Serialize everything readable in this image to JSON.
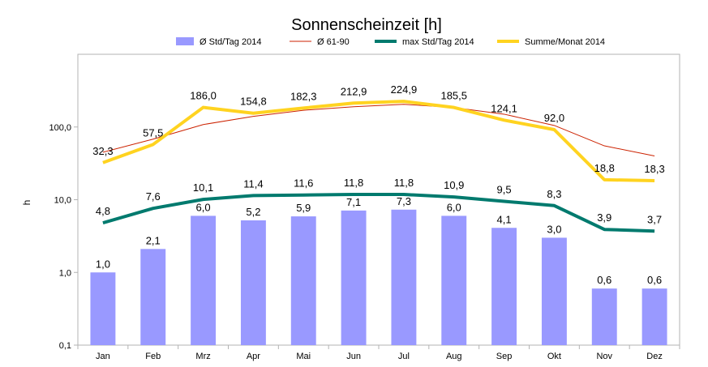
{
  "chart_data": {
    "type": "bar",
    "title": "Sonnenscheinzeit [h]",
    "xlabel": "",
    "ylabel": "h",
    "scale": "log",
    "ylim": [
      0.1,
      1000
    ],
    "ytick_values": [
      0.1,
      1,
      10,
      100
    ],
    "ytick_labels": [
      "0,1",
      "1,0",
      "10,0",
      "100,0"
    ],
    "grid": false,
    "legend_position": "top",
    "categories": [
      "Jan",
      "Feb",
      "Mrz",
      "Apr",
      "Mai",
      "Jun",
      "Jul",
      "Aug",
      "Sep",
      "Okt",
      "Nov",
      "Dez"
    ],
    "series": [
      {
        "name": "Ø  Std/Tag 2014",
        "kind": "bar",
        "color": "#9999ff",
        "values": [
          1.0,
          2.1,
          6.0,
          5.2,
          5.9,
          7.1,
          7.3,
          6.0,
          4.1,
          3.0,
          0.6,
          0.6
        ],
        "labels": [
          "1,0",
          "2,1",
          "6,0",
          "5,2",
          "5,9",
          "7,1",
          "7,3",
          "6,0",
          "4,1",
          "3,0",
          "0,6",
          "0,6"
        ]
      },
      {
        "name": "Ø 61-90",
        "kind": "line",
        "color": "#cc2200",
        "values": [
          45,
          68,
          108,
          140,
          170,
          190,
          205,
          185,
          150,
          105,
          55,
          40
        ],
        "labels": []
      },
      {
        "name": "max Std/Tag 2014",
        "kind": "line",
        "color": "#007a6e",
        "values": [
          4.8,
          7.6,
          10.1,
          11.4,
          11.6,
          11.8,
          11.8,
          10.9,
          9.5,
          8.3,
          3.9,
          3.7
        ],
        "labels": [
          "4,8",
          "7,6",
          "10,1",
          "11,4",
          "11,6",
          "11,8",
          "11,8",
          "10,9",
          "9,5",
          "8,3",
          "3,9",
          "3,7"
        ]
      },
      {
        "name": "Summe/Monat 2014",
        "kind": "line",
        "color": "#ffd320",
        "values": [
          32.3,
          57.5,
          186.0,
          154.8,
          182.3,
          212.9,
          224.9,
          185.5,
          124.1,
          92.0,
          18.8,
          18.3
        ],
        "labels": [
          "32,3",
          "57,5",
          "186,0",
          "154,8",
          "182,3",
          "212,9",
          "224,9",
          "185,5",
          "124,1",
          "92,0",
          "18,8",
          "18,3"
        ]
      }
    ]
  }
}
